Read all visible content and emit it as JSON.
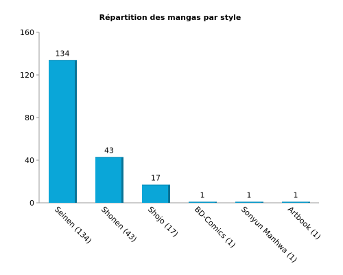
{
  "chart_data": {
    "type": "bar",
    "title": "Répartition des mangas par style",
    "xlabel": "",
    "ylabel": "",
    "categories": [
      "Seinen (134)",
      "Shonen (43)",
      "Shojo (17)",
      "BD-Comics (1)",
      "Sonyun Manhwa (1)",
      "Artbook (1)"
    ],
    "values": [
      134,
      43,
      17,
      1,
      1,
      1
    ],
    "data_labels": [
      "134",
      "43",
      "17",
      "1",
      "1",
      "1"
    ],
    "ylim": [
      0,
      160
    ],
    "yticks": [
      0,
      40,
      80,
      120,
      160
    ],
    "ytick_labels": [
      "0",
      "40",
      "80",
      "120",
      "160"
    ],
    "grid": false,
    "legend": "none",
    "colors": {
      "bar_front": "#0aa6d8",
      "bar_side": "#0a7396",
      "bar_top": "#0b8cb8",
      "axis": "#999999"
    }
  }
}
